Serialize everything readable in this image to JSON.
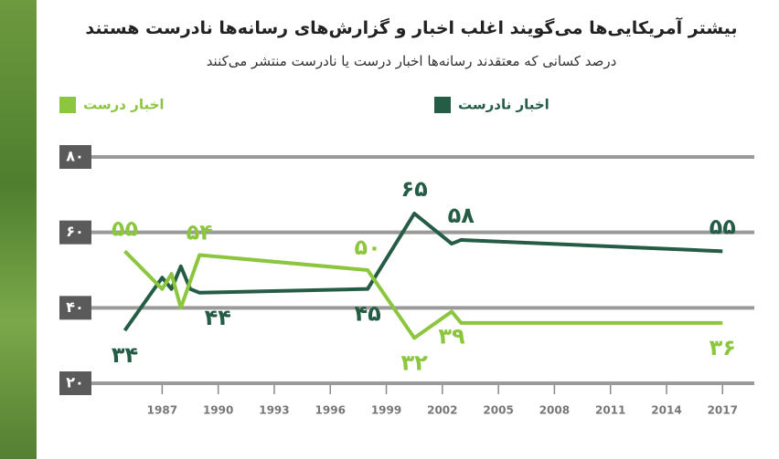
{
  "chart_data": {
    "type": "line",
    "title": "بیشتر آمریکایی‌ها می‌گویند اغلب اخبار و گزارش‌های رسانه‌ها نادرست هستند",
    "subtitle": "درصد کسانی که معتقدند رسانه‌ها اخبار درست یا نادرست منتشر می‌کنند",
    "series": [
      {
        "name": "اخبار نادرست",
        "color": "#255c45",
        "x": [
          1985,
          1987,
          1987.5,
          1988,
          1988.5,
          1989,
          1998,
          2000.5,
          2002.5,
          2003,
          2017
        ],
        "values": [
          34,
          48,
          45,
          51,
          45,
          44,
          45,
          65,
          57,
          58,
          55
        ],
        "value_labels": [
          "۳۴",
          null,
          null,
          null,
          null,
          "۴۴",
          "۴۵",
          "۶۵",
          null,
          "۵۸",
          "۵۵"
        ]
      },
      {
        "name": "اخبار درست",
        "color": "#8cc63f",
        "x": [
          1985,
          1987,
          1987.5,
          1988,
          1989,
          1998,
          2000.5,
          2002.5,
          2003,
          2017
        ],
        "values": [
          55,
          45,
          49,
          40,
          54,
          50,
          32,
          39,
          36,
          36
        ],
        "value_labels": [
          "۵۵",
          null,
          null,
          null,
          "۵۴",
          "۵۰",
          "۳۲",
          "۳۹",
          null,
          "۳۶"
        ]
      }
    ],
    "xlim": [
      1981.5,
      2018.7
    ],
    "xticks": [
      1987,
      1990,
      1993,
      1996,
      1999,
      2002,
      2005,
      2008,
      2011,
      2014,
      2017
    ],
    "ylim": [
      20,
      80
    ],
    "yticks": [
      {
        "value": 20,
        "label": "۲۰"
      },
      {
        "value": 40,
        "label": "۴۰"
      },
      {
        "value": 60,
        "label": "۶۰"
      },
      {
        "value": 80,
        "label": "۸۰"
      }
    ],
    "grid": true
  }
}
